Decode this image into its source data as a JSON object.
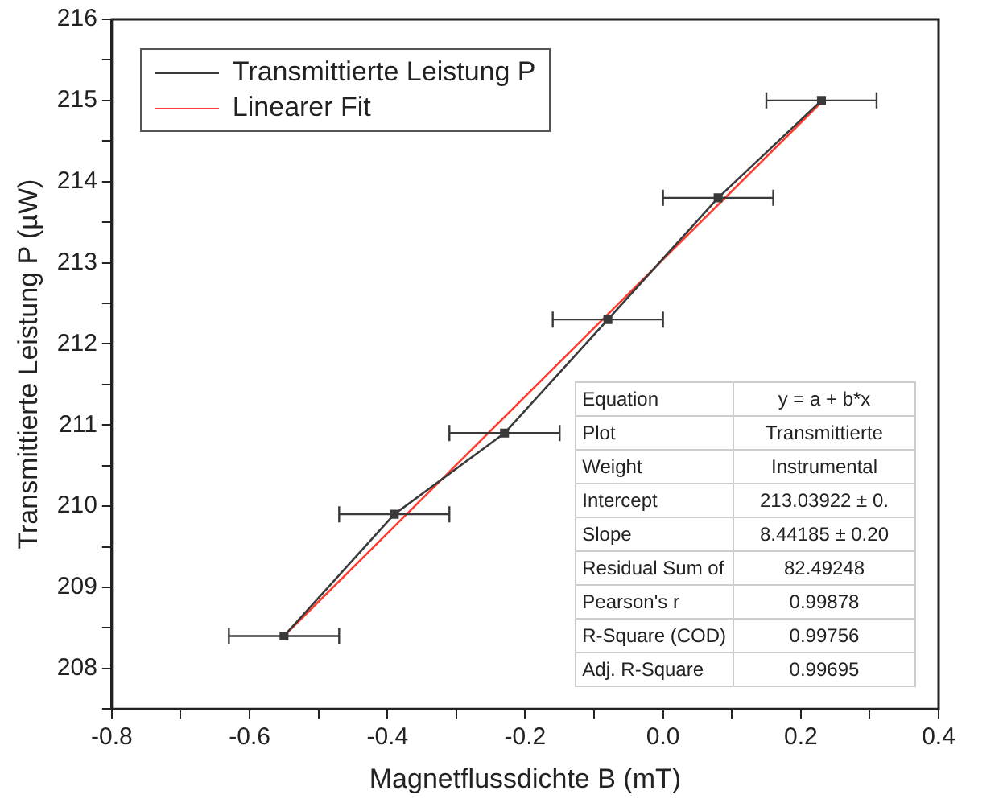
{
  "chart_data": {
    "type": "line",
    "xlabel": "Magnetflussdichte B (mT)",
    "ylabel": "Transmittierte Leistung P (µW)",
    "x": [
      -0.55,
      -0.39,
      -0.23,
      -0.08,
      0.08,
      0.23
    ],
    "series": [
      {
        "name": "Transmittierte Leistung P",
        "color": "#3a3a3a",
        "values": [
          208.4,
          209.9,
          210.9,
          212.3,
          213.8,
          215.0
        ],
        "xerrors": [
          0.08,
          0.08,
          0.08,
          0.08,
          0.08,
          0.08
        ],
        "marker": "square"
      },
      {
        "name": "Linearer Fit",
        "color": "#ff3b2f",
        "x": [
          -0.55,
          0.23
        ],
        "values": [
          208.4,
          214.98
        ],
        "marker": "none"
      }
    ],
    "xlim": [
      -0.8,
      0.4
    ],
    "xticks": [
      -0.8,
      {
        "value": -0.7,
        "label": null
      },
      -0.6,
      {
        "value": -0.5,
        "label": null
      },
      -0.4,
      {
        "value": -0.3,
        "label": null
      },
      -0.2,
      {
        "value": -0.1,
        "label": null
      },
      {
        "value": 0,
        "label": "0.0"
      },
      {
        "value": 0.1,
        "label": null
      },
      0.2,
      {
        "value": 0.3,
        "label": null
      },
      0.4
    ],
    "ylim": [
      207.5,
      216
    ],
    "yticks": [
      {
        "value": 207.5,
        "label": null
      },
      208,
      {
        "value": 208.5,
        "label": null
      },
      209,
      {
        "value": 209.5,
        "label": null
      },
      210,
      {
        "value": 210.5,
        "label": null
      },
      211,
      {
        "value": 211.5,
        "label": null
      },
      212,
      {
        "value": 212.5,
        "label": null
      },
      213,
      {
        "value": 213.5,
        "label": null
      },
      214,
      {
        "value": 214.5,
        "label": null
      },
      215,
      {
        "value": 215.5,
        "label": null
      },
      216
    ],
    "grid": false,
    "legend": "top left",
    "line_style": "solid",
    "annotations": [
      "Equation",
      "y = a + b*x",
      "Plot",
      "Transmittierte",
      "Weight",
      "Instrumental",
      "Intercept",
      "213.03922 ± 0.",
      "Slope",
      "8.44185 ± 0.20",
      "Residual Sum of",
      "82.49248",
      "Pearson's r",
      "0.99878",
      "R-Square (COD)",
      "0.99756",
      "Adj. R-Square",
      "0.99695"
    ]
  }
}
